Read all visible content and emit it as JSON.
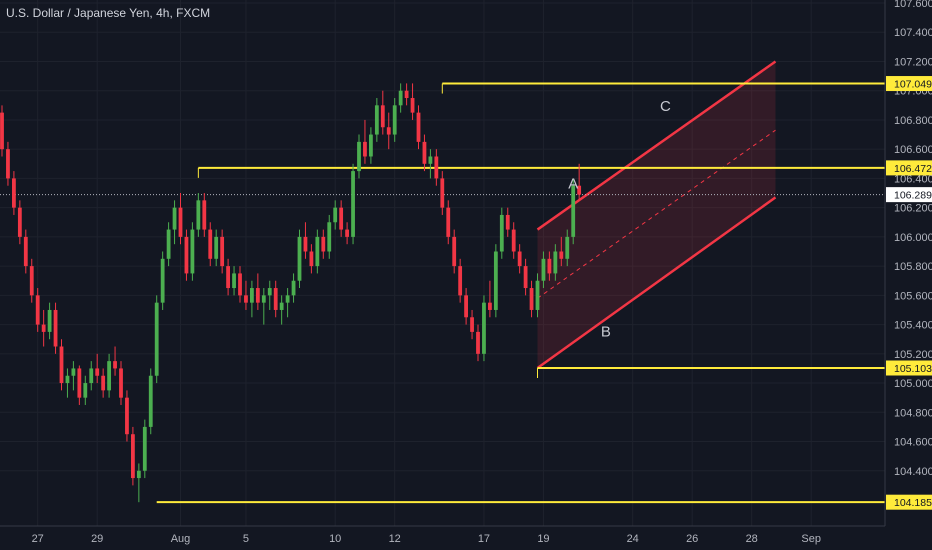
{
  "header": {
    "title": "U.S. Dollar / Japanese Yen, 4h, FXCM"
  },
  "chart_data": {
    "type": "candlestick",
    "symbol": "U.S. Dollar / Japanese Yen",
    "timeframe": "4h",
    "source": "FXCM",
    "ylim": [
      103.94,
      107.6
    ],
    "y_ticks": [
      104.4,
      104.6,
      104.8,
      105.0,
      105.2,
      105.4,
      105.6,
      105.8,
      106.0,
      106.2,
      106.4,
      106.6,
      106.8,
      107.0,
      107.2,
      107.4,
      107.6
    ],
    "y_tick_labels": [
      "104.400",
      "104.600",
      "104.800",
      "105.000",
      "105.200",
      "105.400",
      "105.600",
      "105.800",
      "106.000",
      "106.200",
      "106.400",
      "106.600",
      "106.800",
      "107.000",
      "107.200",
      "107.400",
      "107.600"
    ],
    "x_ticks": [
      {
        "label": "27",
        "bar": 6
      },
      {
        "label": "29",
        "bar": 16
      },
      {
        "label": "Aug",
        "bar": 30
      },
      {
        "label": "5",
        "bar": 41
      },
      {
        "label": "10",
        "bar": 56
      },
      {
        "label": "12",
        "bar": 66
      },
      {
        "label": "17",
        "bar": 81
      },
      {
        "label": "19",
        "bar": 91
      },
      {
        "label": "24",
        "bar": 106
      },
      {
        "label": "26",
        "bar": 116
      },
      {
        "label": "28",
        "bar": 126
      },
      {
        "label": "Sep",
        "bar": 136
      }
    ],
    "colors": {
      "up": "#4caf50",
      "down": "#f23645",
      "level": "#ffeb3b",
      "channel": "#f23645",
      "price_line": "#b2b5be",
      "background": "#131722"
    },
    "levels": [
      {
        "value": 107.049,
        "label": "107.049",
        "from_bar": 74
      },
      {
        "value": 106.472,
        "label": "106.472",
        "from_bar": 33
      },
      {
        "value": 105.103,
        "label": "105.103",
        "from_bar": 90
      },
      {
        "value": 104.185,
        "label": "104.185",
        "from_bar": 26
      }
    ],
    "last_price": {
      "value": 106.289,
      "label": "106.289"
    },
    "channel": {
      "upper": [
        [
          90,
          106.05
        ],
        [
          130,
          107.2
        ]
      ],
      "lower": [
        [
          90,
          105.103
        ],
        [
          130,
          106.27
        ]
      ],
      "mid": [
        [
          90,
          105.58
        ],
        [
          130,
          106.73
        ]
      ]
    },
    "annotations": [
      {
        "text": "A",
        "bar": 96,
        "y": 106.33
      },
      {
        "text": "B",
        "bar": 101.5,
        "y": 105.32
      },
      {
        "text": "C",
        "bar": 111.5,
        "y": 106.86
      }
    ],
    "candles": [
      [
        106.85,
        106.9,
        106.55,
        106.6
      ],
      [
        106.6,
        106.65,
        106.35,
        106.4
      ],
      [
        106.4,
        106.45,
        106.15,
        106.2
      ],
      [
        106.2,
        106.25,
        105.95,
        106.0
      ],
      [
        106.0,
        106.05,
        105.75,
        105.8
      ],
      [
        105.8,
        105.85,
        105.55,
        105.6
      ],
      [
        105.6,
        105.65,
        105.35,
        105.4
      ],
      [
        105.4,
        105.5,
        105.25,
        105.35
      ],
      [
        105.35,
        105.55,
        105.3,
        105.5
      ],
      [
        105.5,
        105.55,
        105.2,
        105.25
      ],
      [
        105.25,
        105.3,
        104.95,
        105.0
      ],
      [
        105.0,
        105.1,
        104.9,
        105.05
      ],
      [
        105.05,
        105.15,
        104.95,
        105.1
      ],
      [
        105.1,
        105.12,
        104.85,
        104.9
      ],
      [
        104.9,
        105.05,
        104.85,
        105.0
      ],
      [
        105.0,
        105.15,
        104.95,
        105.1
      ],
      [
        105.1,
        105.2,
        105.0,
        105.05
      ],
      [
        105.05,
        105.1,
        104.9,
        104.95
      ],
      [
        104.95,
        105.2,
        104.9,
        105.15
      ],
      [
        105.15,
        105.25,
        105.05,
        105.1
      ],
      [
        105.1,
        105.15,
        104.85,
        104.9
      ],
      [
        104.9,
        104.95,
        104.6,
        104.65
      ],
      [
        104.65,
        104.7,
        104.3,
        104.35
      ],
      [
        104.35,
        104.45,
        104.185,
        104.4
      ],
      [
        104.4,
        104.75,
        104.35,
        104.7
      ],
      [
        104.7,
        105.1,
        104.65,
        105.05
      ],
      [
        105.05,
        105.6,
        105.0,
        105.55
      ],
      [
        105.55,
        105.9,
        105.5,
        105.85
      ],
      [
        105.85,
        106.1,
        105.8,
        106.05
      ],
      [
        106.05,
        106.25,
        105.95,
        106.2
      ],
      [
        106.2,
        106.3,
        105.95,
        106.0
      ],
      [
        106.0,
        106.05,
        105.7,
        105.75
      ],
      [
        105.75,
        106.1,
        105.7,
        106.05
      ],
      [
        106.05,
        106.3,
        106.0,
        106.25
      ],
      [
        106.25,
        106.3,
        106.0,
        106.05
      ],
      [
        106.05,
        106.1,
        105.8,
        105.85
      ],
      [
        105.85,
        106.05,
        105.8,
        106.0
      ],
      [
        106.0,
        106.05,
        105.75,
        105.8
      ],
      [
        105.8,
        105.85,
        105.6,
        105.65
      ],
      [
        105.65,
        105.8,
        105.6,
        105.75
      ],
      [
        105.75,
        105.8,
        105.55,
        105.6
      ],
      [
        105.6,
        105.7,
        105.5,
        105.55
      ],
      [
        105.55,
        105.7,
        105.45,
        105.65
      ],
      [
        105.65,
        105.75,
        105.5,
        105.55
      ],
      [
        105.55,
        105.65,
        105.4,
        105.6
      ],
      [
        105.6,
        105.7,
        105.5,
        105.65
      ],
      [
        105.65,
        105.7,
        105.45,
        105.5
      ],
      [
        105.5,
        105.6,
        105.4,
        105.55
      ],
      [
        105.55,
        105.65,
        105.45,
        105.6
      ],
      [
        105.6,
        105.75,
        105.55,
        105.7
      ],
      [
        105.7,
        106.05,
        105.65,
        106.0
      ],
      [
        106.0,
        106.1,
        105.85,
        105.9
      ],
      [
        105.9,
        105.95,
        105.75,
        105.8
      ],
      [
        105.8,
        106.05,
        105.75,
        106.0
      ],
      [
        106.0,
        106.05,
        105.85,
        105.9
      ],
      [
        105.9,
        106.15,
        105.85,
        106.1
      ],
      [
        106.1,
        106.25,
        106.05,
        106.2
      ],
      [
        106.2,
        106.25,
        106.0,
        106.05
      ],
      [
        106.05,
        106.1,
        105.95,
        106.0
      ],
      [
        106.0,
        106.5,
        105.95,
        106.45
      ],
      [
        106.45,
        106.7,
        106.4,
        106.65
      ],
      [
        106.65,
        106.8,
        106.5,
        106.55
      ],
      [
        106.55,
        106.75,
        106.5,
        106.7
      ],
      [
        106.7,
        106.95,
        106.65,
        106.9
      ],
      [
        106.9,
        107.0,
        106.7,
        106.75
      ],
      [
        106.75,
        106.85,
        106.6,
        106.7
      ],
      [
        106.7,
        106.95,
        106.65,
        106.9
      ],
      [
        106.9,
        107.05,
        106.85,
        107.0
      ],
      [
        107.0,
        107.05,
        106.9,
        106.95
      ],
      [
        106.95,
        107.05,
        106.8,
        106.85
      ],
      [
        106.85,
        106.9,
        106.6,
        106.65
      ],
      [
        106.65,
        106.7,
        106.45,
        106.5
      ],
      [
        106.5,
        106.6,
        106.4,
        106.55
      ],
      [
        106.55,
        106.6,
        106.35,
        106.4
      ],
      [
        106.4,
        106.45,
        106.15,
        106.2
      ],
      [
        106.2,
        106.25,
        105.95,
        106.0
      ],
      [
        106.0,
        106.05,
        105.75,
        105.8
      ],
      [
        105.8,
        105.85,
        105.55,
        105.6
      ],
      [
        105.6,
        105.65,
        105.4,
        105.45
      ],
      [
        105.45,
        105.5,
        105.3,
        105.35
      ],
      [
        105.35,
        105.4,
        105.15,
        105.2
      ],
      [
        105.2,
        105.6,
        105.15,
        105.55
      ],
      [
        105.55,
        105.7,
        105.45,
        105.5
      ],
      [
        105.5,
        105.95,
        105.45,
        105.9
      ],
      [
        105.9,
        106.2,
        105.85,
        106.15
      ],
      [
        106.15,
        106.2,
        106.0,
        106.05
      ],
      [
        106.05,
        106.1,
        105.85,
        105.9
      ],
      [
        105.9,
        105.95,
        105.75,
        105.8
      ],
      [
        105.8,
        105.85,
        105.6,
        105.65
      ],
      [
        105.65,
        105.7,
        105.45,
        105.5
      ],
      [
        105.5,
        105.75,
        105.45,
        105.7
      ],
      [
        105.7,
        105.9,
        105.65,
        105.85
      ],
      [
        105.85,
        105.9,
        105.7,
        105.75
      ],
      [
        105.75,
        105.95,
        105.7,
        105.9
      ],
      [
        105.9,
        106.0,
        105.8,
        105.85
      ],
      [
        105.85,
        106.05,
        105.8,
        106.0
      ],
      [
        106.0,
        106.4,
        105.95,
        106.35
      ],
      [
        106.35,
        106.5,
        106.25,
        106.289
      ]
    ]
  }
}
